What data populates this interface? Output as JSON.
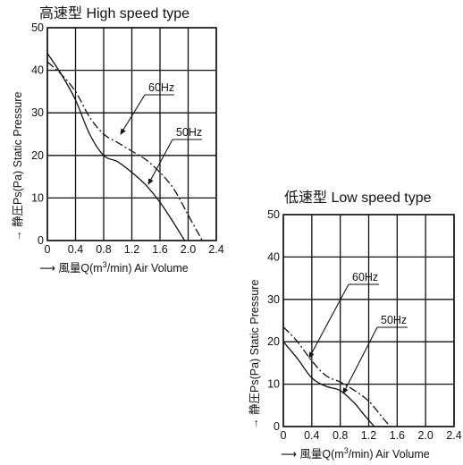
{
  "chart_data": [
    {
      "type": "line",
      "title": "高速型 High speed type",
      "xlabel_prefix": "風量Q(m",
      "xlabel_sup": "3",
      "xlabel_suffix": "/min)  Air Volume",
      "ylabel": "静圧Ps(Pa)  Static Pressure",
      "xlim": [
        0,
        2.4
      ],
      "ylim": [
        0,
        50
      ],
      "xticks": [
        "0",
        "0.4",
        "0.8",
        "1.2",
        "1.6",
        "2.0",
        "2.4"
      ],
      "yticks": [
        "0",
        "10",
        "20",
        "30",
        "40",
        "50"
      ],
      "grid": true,
      "series": [
        {
          "name": "60Hz",
          "style": "dash-dot",
          "x": [
            0,
            0.2,
            0.4,
            0.6,
            0.8,
            1.0,
            1.2,
            1.4,
            1.6,
            1.8,
            2.0,
            2.2
          ],
          "y": [
            42,
            39,
            35,
            29,
            25,
            23,
            21,
            19,
            16,
            12,
            6,
            0
          ]
        },
        {
          "name": "50Hz",
          "style": "solid",
          "x": [
            0,
            0.2,
            0.4,
            0.6,
            0.8,
            1.0,
            1.2,
            1.4,
            1.6,
            1.8,
            1.95
          ],
          "y": [
            44,
            39,
            33,
            25,
            20,
            18.5,
            16,
            13,
            9,
            4,
            0
          ]
        }
      ]
    },
    {
      "type": "line",
      "title": "低速型 Low speed type",
      "xlabel_prefix": "風量Q(m",
      "xlabel_sup": "3",
      "xlabel_suffix": "/min)  Air Volume",
      "ylabel": "静圧Ps(Pa)  Static Pressure",
      "xlim": [
        0,
        2.4
      ],
      "ylim": [
        0,
        50
      ],
      "xticks": [
        "0",
        "0.4",
        "0.8",
        "1.2",
        "1.6",
        "2.0",
        "2.4"
      ],
      "yticks": [
        "0",
        "10",
        "20",
        "30",
        "40",
        "50"
      ],
      "grid": true,
      "series": [
        {
          "name": "60Hz",
          "style": "dash-dot",
          "x": [
            0,
            0.2,
            0.4,
            0.6,
            0.8,
            1.0,
            1.2,
            1.4,
            1.5
          ],
          "y": [
            23.5,
            20,
            15.5,
            12,
            10.5,
            8.5,
            6,
            2,
            0
          ]
        },
        {
          "name": "50Hz",
          "style": "solid",
          "x": [
            0,
            0.2,
            0.4,
            0.6,
            0.8,
            1.0,
            1.1,
            1.2,
            1.28
          ],
          "y": [
            20,
            16,
            11.5,
            9.5,
            8.5,
            5.5,
            3.5,
            1.5,
            0
          ]
        }
      ]
    }
  ]
}
